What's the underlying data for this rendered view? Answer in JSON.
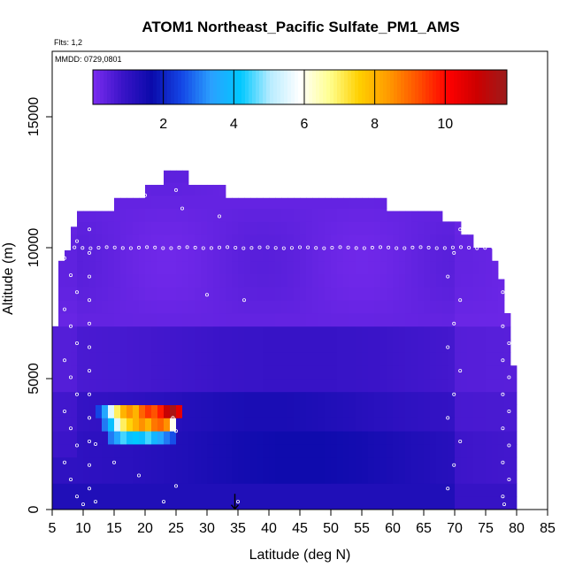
{
  "chart_data": {
    "type": "heatmap",
    "title": "ATOM1 Northeast_Pacific Sulfate_PM1_AMS",
    "subtitle_flights": "Flts: 1,2",
    "subtitle_dates": "MMDD: 0729,0801",
    "xlabel": "Latitude (deg N)",
    "ylabel": "Altitude (m)",
    "xlim": [
      5,
      85
    ],
    "ylim": [
      0,
      17500
    ],
    "x_ticks": [
      5,
      10,
      15,
      20,
      25,
      30,
      35,
      40,
      45,
      50,
      55,
      60,
      65,
      70,
      75,
      80,
      85
    ],
    "y_ticks": [
      0,
      5000,
      10000,
      15000
    ],
    "colorbar": {
      "range": [
        0,
        11.75
      ],
      "ticks": [
        2,
        4,
        6,
        8,
        10
      ],
      "colors": [
        "#7b2cf0",
        "#3a14c8",
        "#0a0aaa",
        "#1446e6",
        "#2aa0ff",
        "#00c8ff",
        "#b8ecff",
        "#ffffff",
        "#ffff90",
        "#ffd000",
        "#ff9a00",
        "#ff5000",
        "#ff0000",
        "#cc0000",
        "#9b1c1c"
      ]
    },
    "latitude_columns": [
      {
        "lat": 5,
        "top": 7000
      },
      {
        "lat": 6,
        "top": 9500
      },
      {
        "lat": 7,
        "top": 9900
      },
      {
        "lat": 8,
        "top": 10800
      },
      {
        "lat": 9,
        "top": 11400
      },
      {
        "lat": 15,
        "top": 11900
      },
      {
        "lat": 20,
        "top": 12400
      },
      {
        "lat": 23,
        "top": 12950
      },
      {
        "lat": 27,
        "top": 12400
      },
      {
        "lat": 33,
        "top": 11900
      },
      {
        "lat": 59,
        "top": 11400
      },
      {
        "lat": 68,
        "top": 11000
      },
      {
        "lat": 71,
        "top": 10500
      },
      {
        "lat": 73,
        "top": 10000
      },
      {
        "lat": 76,
        "top": 9500
      },
      {
        "lat": 77,
        "top": 8800
      },
      {
        "lat": 77.5,
        "top": 7500
      },
      {
        "lat": 78.5,
        "top": 5500
      },
      {
        "lat": 79.5,
        "top": 200
      }
    ],
    "high_values": [
      {
        "lat": 12,
        "alt": 3750,
        "value": 2.5
      },
      {
        "lat": 13,
        "alt": 3750,
        "value": 3.5
      },
      {
        "lat": 14,
        "alt": 3750,
        "value": 5.5
      },
      {
        "lat": 15,
        "alt": 3750,
        "value": 7.0
      },
      {
        "lat": 16,
        "alt": 3750,
        "value": 8.0
      },
      {
        "lat": 17,
        "alt": 3750,
        "value": 8.5
      },
      {
        "lat": 18,
        "alt": 3750,
        "value": 8.0
      },
      {
        "lat": 19,
        "alt": 3750,
        "value": 9.0
      },
      {
        "lat": 20,
        "alt": 3750,
        "value": 9.5
      },
      {
        "lat": 21,
        "alt": 3750,
        "value": 9.2
      },
      {
        "lat": 22,
        "alt": 3750,
        "value": 9.8
      },
      {
        "lat": 23,
        "alt": 3750,
        "value": 11.0
      },
      {
        "lat": 24,
        "alt": 3750,
        "value": 11.5
      },
      {
        "lat": 25,
        "alt": 3750,
        "value": 10.5
      },
      {
        "lat": 26,
        "alt": 4200,
        "value": 3.0
      },
      {
        "lat": 27,
        "alt": 4200,
        "value": 4.5
      },
      {
        "lat": 28,
        "alt": 4200,
        "value": 5.5
      },
      {
        "lat": 29,
        "alt": 4200,
        "value": 6.0
      },
      {
        "lat": 13,
        "alt": 3250,
        "value": 3.0
      },
      {
        "lat": 14,
        "alt": 3250,
        "value": 4.0
      },
      {
        "lat": 15,
        "alt": 3250,
        "value": 5.5
      },
      {
        "lat": 16,
        "alt": 3250,
        "value": 7.0
      },
      {
        "lat": 17,
        "alt": 3250,
        "value": 7.5
      },
      {
        "lat": 18,
        "alt": 3250,
        "value": 8.0
      },
      {
        "lat": 19,
        "alt": 3250,
        "value": 8.5
      },
      {
        "lat": 20,
        "alt": 3250,
        "value": 8.0
      },
      {
        "lat": 21,
        "alt": 3250,
        "value": 8.8
      },
      {
        "lat": 22,
        "alt": 3250,
        "value": 9.0
      },
      {
        "lat": 23,
        "alt": 3250,
        "value": 8.5
      },
      {
        "lat": 24,
        "alt": 3250,
        "value": 6.0
      },
      {
        "lat": 14,
        "alt": 2750,
        "value": 3.0
      },
      {
        "lat": 15,
        "alt": 2750,
        "value": 3.5
      },
      {
        "lat": 16,
        "alt": 2750,
        "value": 4.5
      },
      {
        "lat": 17,
        "alt": 2750,
        "value": 4.0
      },
      {
        "lat": 18,
        "alt": 2750,
        "value": 4.2
      },
      {
        "lat": 19,
        "alt": 2750,
        "value": 4.0
      },
      {
        "lat": 20,
        "alt": 2750,
        "value": 4.5
      },
      {
        "lat": 21,
        "alt": 2750,
        "value": 3.8
      },
      {
        "lat": 22,
        "alt": 2750,
        "value": 3.5
      },
      {
        "lat": 23,
        "alt": 2750,
        "value": 3.0
      },
      {
        "lat": 24,
        "alt": 2750,
        "value": 2.6
      }
    ],
    "marker_arrow_lat": 34.5
  }
}
